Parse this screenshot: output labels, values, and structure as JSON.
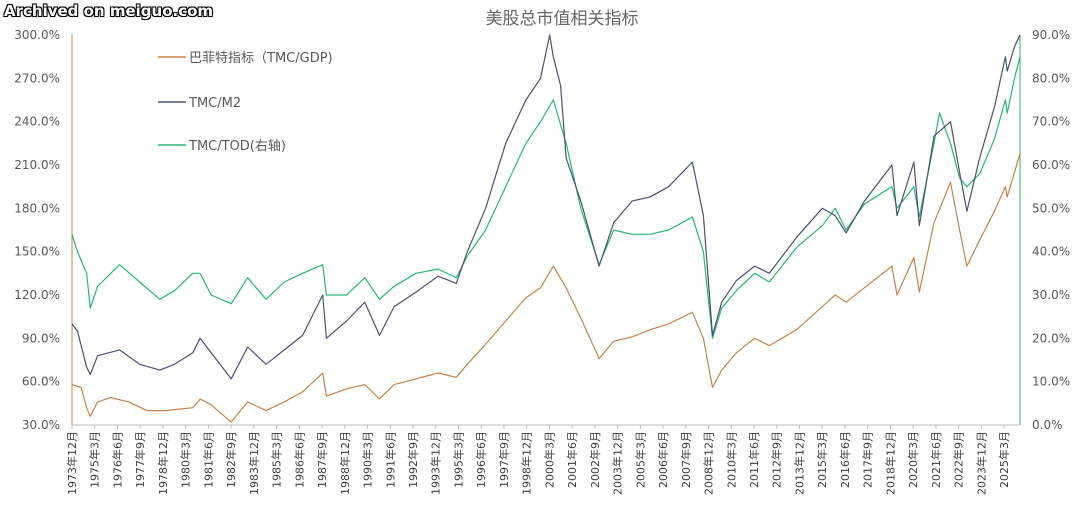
{
  "watermark": "Archived on meiguo.com",
  "colors": {
    "buffett": "#C8824A",
    "m2": "#4A5270",
    "tod": "#2BB673"
  },
  "chart_data": {
    "type": "line",
    "title": "美股总市值相关指标",
    "left_axis": {
      "ylim": [
        30,
        300
      ],
      "ticks": [
        "30.0%",
        "60.0%",
        "90.0%",
        "120.0%",
        "150.0%",
        "180.0%",
        "210.0%",
        "240.0%",
        "270.0%",
        "300.0%"
      ]
    },
    "right_axis": {
      "ylim": [
        0,
        90
      ],
      "ticks": [
        "0.0%",
        "10.0%",
        "20.0%",
        "30.0%",
        "40.0%",
        "50.0%",
        "60.0%",
        "70.0%",
        "80.0%",
        "90.0%"
      ]
    },
    "x_tick_labels": [
      "1973年12月",
      "1975年3月",
      "1976年6月",
      "1977年9月",
      "1978年12月",
      "1980年3月",
      "1981年6月",
      "1982年9月",
      "1983年12月",
      "1985年3月",
      "1986年6月",
      "1987年9月",
      "1988年12月",
      "1990年3月",
      "1991年6月",
      "1992年9月",
      "1993年12月",
      "1995年3月",
      "1996年6月",
      "1997年9月",
      "1998年12月",
      "2000年3月",
      "2001年6月",
      "2002年9月",
      "2003年12月",
      "2005年3月",
      "2006年6月",
      "2007年9月",
      "2008年12月",
      "2010年3月",
      "2011年6月",
      "2012年9月",
      "2013年12月",
      "2015年3月",
      "2016年6月",
      "2017年9月",
      "2018年12月",
      "2020年3月",
      "2021年6月",
      "2022年9月",
      "2023年12月",
      "2025年3月"
    ],
    "legend_placement": "top-left",
    "grid": false,
    "series": [
      {
        "name": "巴菲特指标（TMC/GDP)",
        "axis": "left",
        "x": [
          1973.9,
          1974.4,
          1974.7,
          1974.9,
          1975.3,
          1976.0,
          1977.0,
          1978.0,
          1979.0,
          1980.5,
          1980.9,
          1981.5,
          1982.6,
          1983.5,
          1984.5,
          1985.5,
          1986.5,
          1987.6,
          1987.8,
          1988.9,
          1989.9,
          1990.7,
          1991.5,
          1992.7,
          1993.9,
          1994.9,
          1995.5,
          1996.5,
          1997.6,
          1998.7,
          1999.5,
          2000.2,
          2000.9,
          2001.7,
          2002.7,
          2003.5,
          2004.5,
          2005.5,
          2006.5,
          2007.8,
          2008.4,
          2008.9,
          2009.4,
          2010.2,
          2011.2,
          2012.0,
          2013.5,
          2014.9,
          2015.6,
          2016.2,
          2017.2,
          2018.7,
          2018.98,
          2019.9,
          2020.2,
          2021.0,
          2021.9,
          2022.4,
          2022.8,
          2023.5,
          2024.3,
          2024.9,
          2025.0,
          2025.4,
          2025.7
        ],
        "values": [
          58,
          56,
          42,
          36,
          46,
          49,
          46,
          40,
          40,
          42,
          48,
          44,
          32,
          46,
          40,
          46,
          53,
          66,
          50,
          55,
          58,
          48,
          58,
          62,
          66,
          63,
          72,
          86,
          102,
          118,
          125,
          140,
          125,
          104,
          76,
          88,
          91,
          96,
          100,
          108,
          90,
          56,
          68,
          80,
          90,
          85,
          96,
          112,
          120,
          115,
          125,
          140,
          120,
          146,
          122,
          170,
          198,
          165,
          140,
          158,
          178,
          195,
          188,
          205,
          218
        ]
      },
      {
        "name": "TMC/M2",
        "axis": "left",
        "x": [
          1973.9,
          1974.2,
          1974.7,
          1974.9,
          1975.3,
          1976.5,
          1977.6,
          1978.7,
          1979.5,
          1980.5,
          1980.9,
          1981.5,
          1982.6,
          1983.5,
          1984.5,
          1985.5,
          1986.5,
          1987.6,
          1987.8,
          1988.9,
          1989.9,
          1990.7,
          1991.5,
          1992.7,
          1993.9,
          1994.9,
          1995.5,
          1996.5,
          1997.6,
          1998.7,
          1999.5,
          2000.0,
          2000.2,
          2000.6,
          2000.9,
          2001.7,
          2002.7,
          2003.5,
          2004.5,
          2005.5,
          2006.5,
          2007.8,
          2008.4,
          2008.9,
          2009.4,
          2010.2,
          2011.2,
          2012.0,
          2013.5,
          2014.9,
          2015.6,
          2016.2,
          2017.2,
          2018.7,
          2018.98,
          2019.9,
          2020.2,
          2021.0,
          2021.9,
          2022.4,
          2022.8,
          2023.5,
          2024.3,
          2024.9,
          2025.0,
          2025.4,
          2025.7
        ],
        "values": [
          100,
          95,
          70,
          65,
          78,
          82,
          72,
          68,
          72,
          80,
          90,
          80,
          62,
          84,
          72,
          82,
          92,
          120,
          90,
          102,
          115,
          92,
          112,
          122,
          133,
          128,
          150,
          180,
          225,
          255,
          270,
          300,
          285,
          265,
          215,
          185,
          140,
          170,
          185,
          188,
          195,
          212,
          175,
          92,
          115,
          130,
          140,
          135,
          160,
          180,
          175,
          163,
          185,
          210,
          175,
          212,
          168,
          230,
          240,
          205,
          178,
          215,
          250,
          285,
          275,
          292,
          300
        ]
      },
      {
        "name": "TMC/TOD(右轴)",
        "axis": "right",
        "x": [
          1973.9,
          1974.2,
          1974.7,
          1974.9,
          1975.3,
          1976.5,
          1977.6,
          1978.7,
          1979.5,
          1980.5,
          1980.9,
          1981.5,
          1982.6,
          1983.5,
          1984.5,
          1985.5,
          1986.5,
          1987.6,
          1987.8,
          1988.9,
          1989.9,
          1990.7,
          1991.5,
          1992.7,
          1993.9,
          1994.9,
          1995.5,
          1996.5,
          1997.6,
          1998.7,
          1999.5,
          2000.2,
          2000.9,
          2001.7,
          2002.7,
          2003.5,
          2004.5,
          2005.5,
          2006.5,
          2007.8,
          2008.4,
          2008.9,
          2009.4,
          2010.2,
          2011.2,
          2012.0,
          2013.5,
          2014.9,
          2015.6,
          2016.2,
          2017.2,
          2018.7,
          2018.98,
          2019.9,
          2020.2,
          2021.0,
          2021.3,
          2021.9,
          2022.4,
          2022.8,
          2023.5,
          2024.3,
          2024.9,
          2025.0,
          2025.4,
          2025.7
        ],
        "values": [
          44,
          40,
          35,
          27,
          32,
          37,
          33,
          29,
          31,
          35,
          35,
          30,
          28,
          34,
          29,
          33,
          35,
          37,
          30,
          30,
          34,
          29,
          32,
          35,
          36,
          34,
          39,
          45,
          55,
          65,
          70,
          75,
          65,
          50,
          37,
          45,
          44,
          44,
          45,
          48,
          40,
          20,
          27,
          31,
          35,
          33,
          41,
          46,
          50,
          45,
          51,
          55,
          50,
          55,
          48,
          65,
          72,
          65,
          57,
          55,
          58,
          66,
          75,
          72,
          80,
          85
        ]
      }
    ]
  }
}
